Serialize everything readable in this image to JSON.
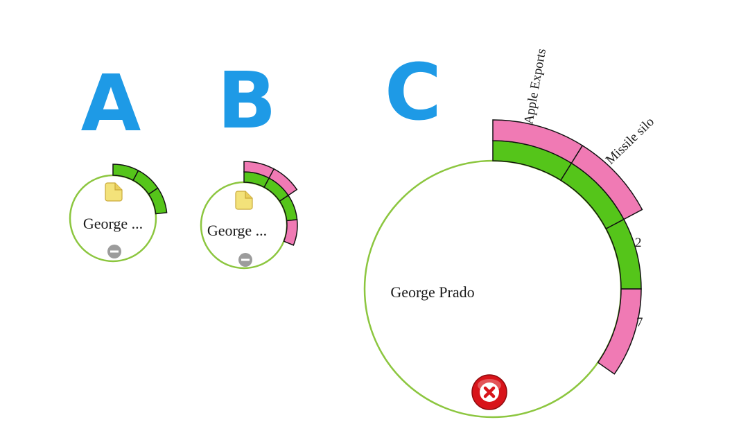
{
  "colors": {
    "letter_blue": "#1e9ae6",
    "ring_green": "#8cc63f",
    "seg_green": "#55c51a",
    "seg_pink": "#f07ab4",
    "doc_yellow": "#f3e27a",
    "minus_gray": "#9a9a9a",
    "delete_red": "#d8141a"
  },
  "panels": {
    "a": {
      "letter": "A",
      "node_label": "George ..."
    },
    "b": {
      "letter": "B",
      "node_label": "George ..."
    },
    "c": {
      "letter": "C",
      "node_label": "George Prado",
      "labels": {
        "apple_exports": "Apple Exports",
        "missile_silo": "Missile silo",
        "count_2": "2",
        "count_7": "7"
      }
    }
  },
  "icons": {
    "document": "document-icon",
    "collapse": "minus-circle-icon",
    "delete": "delete-x-icon"
  }
}
